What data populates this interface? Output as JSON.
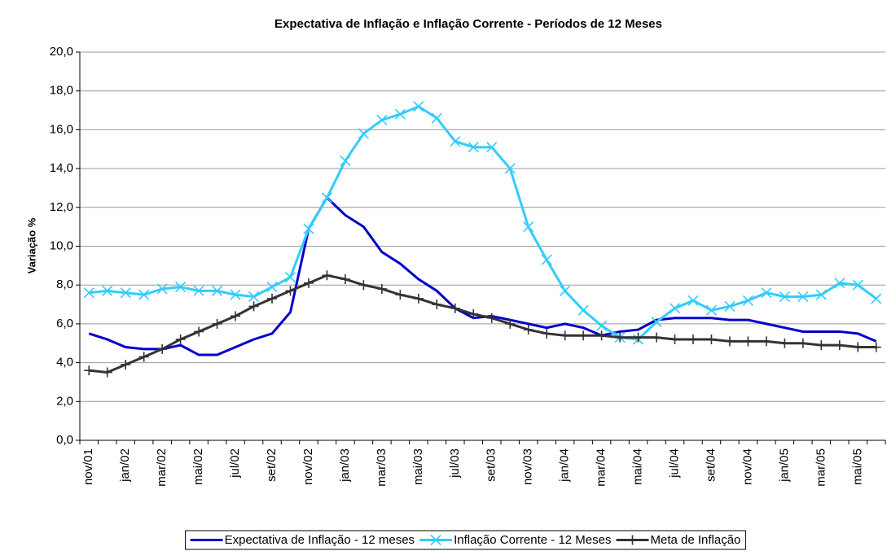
{
  "chart_data": {
    "type": "line",
    "title": "Expectativa de Inflação e Inflação Corrente - Períodos de 12 Meses",
    "y_label": "Variação %",
    "categories": [
      "nov/01",
      null,
      "jan/02",
      null,
      "mar/02",
      null,
      "mai/02",
      null,
      "jul/02",
      null,
      "set/02",
      null,
      "nov/02",
      null,
      "jan/03",
      null,
      "mar/03",
      null,
      "mai/03",
      null,
      "jul/03",
      null,
      "set/03",
      null,
      "nov/03",
      null,
      "jan/04",
      null,
      "mar/04",
      null,
      "mai/04",
      null,
      "jul/04",
      null,
      "set/04",
      null,
      "nov/04",
      null,
      "jan/05",
      null,
      "mar/05",
      null,
      "mai/05",
      null
    ],
    "series": [
      {
        "name": "Expectativa de Inflação - 12 meses",
        "color": "#0000cc",
        "marker": "none",
        "values": [
          5.5,
          5.2,
          4.8,
          4.7,
          4.7,
          4.9,
          4.4,
          4.4,
          4.8,
          5.2,
          5.5,
          6.6,
          10.9,
          12.5,
          11.6,
          11.0,
          9.7,
          9.1,
          8.3,
          7.7,
          6.8,
          6.3,
          6.4,
          6.2,
          6.0,
          5.8,
          6.0,
          5.8,
          5.4,
          5.6,
          5.7,
          6.2,
          6.3,
          6.3,
          6.3,
          6.2,
          6.2,
          6.0,
          5.8,
          5.6,
          5.6,
          5.6,
          5.5,
          5.1
        ]
      },
      {
        "name": "Inflação Corrente - 12 Meses",
        "color": "#33ccff",
        "marker": "x",
        "values": [
          7.6,
          7.7,
          7.6,
          7.5,
          7.8,
          7.9,
          7.7,
          7.7,
          7.5,
          7.4,
          7.9,
          8.4,
          10.9,
          12.5,
          14.4,
          15.8,
          16.5,
          16.8,
          17.2,
          16.6,
          15.4,
          15.1,
          15.1,
          14.0,
          11.0,
          9.3,
          7.7,
          6.7,
          5.9,
          5.3,
          5.2,
          6.1,
          6.8,
          7.2,
          6.7,
          6.9,
          7.2,
          7.6,
          7.4,
          7.4,
          7.5,
          8.1,
          8.0,
          7.3
        ]
      },
      {
        "name": "Meta de Inflação",
        "color": "#333333",
        "marker": "plus",
        "values": [
          3.6,
          3.5,
          3.9,
          4.3,
          4.7,
          5.2,
          5.6,
          6.0,
          6.4,
          6.9,
          7.3,
          7.7,
          8.1,
          8.5,
          8.3,
          8.0,
          7.8,
          7.5,
          7.3,
          7.0,
          6.8,
          6.5,
          6.3,
          6.0,
          5.7,
          5.5,
          5.4,
          5.4,
          5.4,
          5.3,
          5.3,
          5.3,
          5.2,
          5.2,
          5.2,
          5.1,
          5.1,
          5.1,
          5.0,
          5.0,
          4.9,
          4.9,
          4.8,
          4.8
        ]
      }
    ],
    "ylim": [
      0,
      20
    ],
    "yticks": [
      {
        "value": 0,
        "label": "0,0"
      },
      {
        "value": 2,
        "label": "2,0"
      },
      {
        "value": 4,
        "label": "4,0"
      },
      {
        "value": 6,
        "label": "6,0"
      },
      {
        "value": 8,
        "label": "8,0"
      },
      {
        "value": 10,
        "label": "10,0"
      },
      {
        "value": 12,
        "label": "12,0"
      },
      {
        "value": 14,
        "label": "14,0"
      },
      {
        "value": 16,
        "label": "16,0"
      },
      {
        "value": 18,
        "label": "18,0"
      },
      {
        "value": 20,
        "label": "20,0"
      }
    ],
    "grid": true,
    "legend": "bottom"
  }
}
